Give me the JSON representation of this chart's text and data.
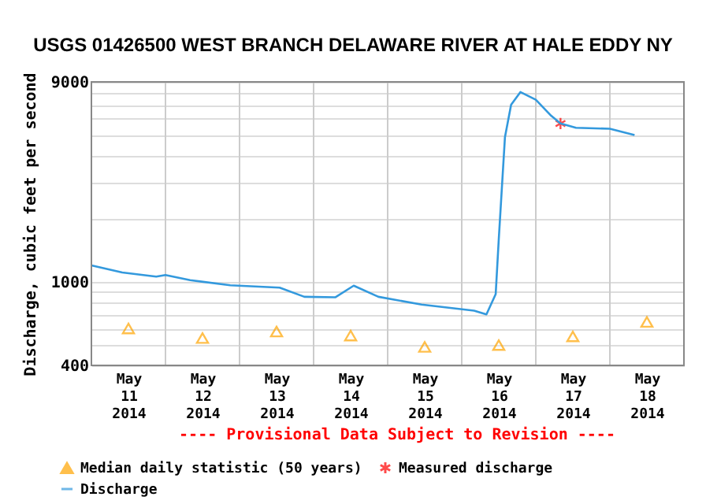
{
  "chart_data": {
    "type": "line",
    "title": "USGS 01426500 WEST BRANCH DELAWARE RIVER AT HALE EDDY NY",
    "ylabel": "Discharge, cubic feet per second",
    "annotations": [
      "---- Provisional Data Subject to Revision ----"
    ],
    "series": [
      {
        "name": "Median daily statistic (50 years)",
        "type": "scatter",
        "marker": "triangle",
        "color": "#ffa500",
        "x": [
          "2014-05-11T12:00",
          "2014-05-12T12:00",
          "2014-05-13T12:00",
          "2014-05-14T12:00",
          "2014-05-15T12:00",
          "2014-05-16T12:00",
          "2014-05-17T12:00",
          "2014-05-18T12:00"
        ],
        "values": [
          600,
          540,
          580,
          555,
          490,
          500,
          550,
          645
        ]
      },
      {
        "name": "Measured discharge",
        "type": "scatter",
        "marker": "cross",
        "color": "#ff0000",
        "x": [
          "2014-05-17T08:00"
        ],
        "values": [
          5700
        ]
      },
      {
        "name": "Discharge",
        "type": "line",
        "marker": "none",
        "line_style": "solid",
        "color": "#3399dd",
        "x": [
          "2014-05-11T00:00",
          "2014-05-11T10:00",
          "2014-05-11T21:00",
          "2014-05-12T00:00",
          "2014-05-12T08:00",
          "2014-05-12T21:00",
          "2014-05-13T13:00",
          "2014-05-13T21:00",
          "2014-05-14T07:00",
          "2014-05-14T13:00",
          "2014-05-14T21:00",
          "2014-05-15T11:00",
          "2014-05-16T04:00",
          "2014-05-16T08:00",
          "2014-05-16T11:00",
          "2014-05-16T12:00",
          "2014-05-16T14:00",
          "2014-05-16T16:00",
          "2014-05-16T19:00",
          "2014-05-17T00:00",
          "2014-05-17T05:00",
          "2014-05-17T08:00",
          "2014-05-17T13:00",
          "2014-05-18T00:00",
          "2014-05-18T08:00"
        ],
        "values": [
          1200,
          1110,
          1060,
          1080,
          1020,
          965,
          940,
          850,
          845,
          960,
          850,
          780,
          730,
          700,
          875,
          1600,
          4900,
          7000,
          8050,
          7400,
          6200,
          5700,
          5440,
          5380,
          5020
        ]
      }
    ],
    "xlim": [
      "2014-05-11T00:00",
      "2014-05-19T00:00"
    ],
    "xticks": [
      {
        "value": "2014-05-11T12:00",
        "label": "May 11 2014"
      },
      {
        "value": "2014-05-12T00:00",
        "label": null
      },
      {
        "value": "2014-05-12T12:00",
        "label": "May 12 2014"
      },
      {
        "value": "2014-05-13T00:00",
        "label": null
      },
      {
        "value": "2014-05-13T12:00",
        "label": "May 13 2014"
      },
      {
        "value": "2014-05-14T00:00",
        "label": null
      },
      {
        "value": "2014-05-14T12:00",
        "label": "May 14 2014"
      },
      {
        "value": "2014-05-15T00:00",
        "label": null
      },
      {
        "value": "2014-05-15T12:00",
        "label": "May 15 2014"
      },
      {
        "value": "2014-05-16T00:00",
        "label": null
      },
      {
        "value": "2014-05-16T12:00",
        "label": "May 16 2014"
      },
      {
        "value": "2014-05-17T00:00",
        "label": null
      },
      {
        "value": "2014-05-17T12:00",
        "label": "May 17 2014"
      },
      {
        "value": "2014-05-18T00:00",
        "label": null
      },
      {
        "value": "2014-05-18T12:00",
        "label": "May 18 2014"
      }
    ],
    "ylim": [
      400,
      9000
    ],
    "yticks": [
      400,
      {
        "value": 500,
        "label": null
      },
      {
        "value": 600,
        "label": null
      },
      {
        "value": 700,
        "label": null
      },
      {
        "value": 800,
        "label": null
      },
      {
        "value": 900,
        "label": null
      },
      1000,
      {
        "value": 2000,
        "label": null
      },
      {
        "value": 3000,
        "label": null
      },
      {
        "value": 4000,
        "label": null
      },
      {
        "value": 5000,
        "label": null
      },
      {
        "value": 6000,
        "label": null
      },
      {
        "value": 7000,
        "label": null
      },
      {
        "value": 8000,
        "label": null
      },
      9000
    ],
    "log": "y",
    "grid": true,
    "legend": "bottom left"
  }
}
